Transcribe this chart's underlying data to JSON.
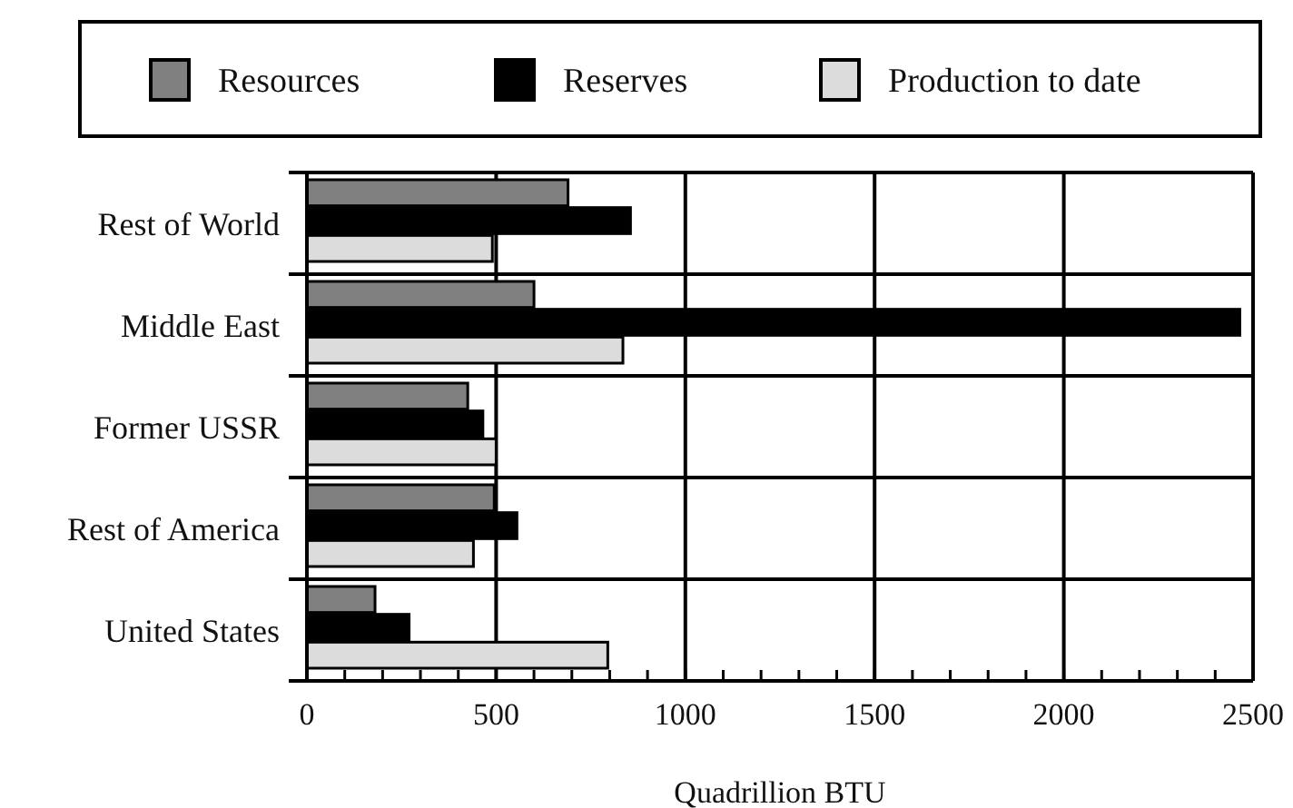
{
  "chart_data": {
    "type": "bar",
    "orientation": "horizontal",
    "xlabel": "Quadrillion BTU",
    "categories": [
      "Rest of World",
      "Middle East",
      "Former USSR",
      "Rest of America",
      "United States"
    ],
    "series": [
      {
        "name": "Resources",
        "color": "#808080",
        "values": [
          690,
          600,
          425,
          495,
          180
        ]
      },
      {
        "name": "Reserves",
        "color": "#000000",
        "values": [
          855,
          2465,
          465,
          555,
          270
        ]
      },
      {
        "name": "Production to date",
        "color": "#dcdcdc",
        "values": [
          490,
          835,
          500,
          440,
          795
        ]
      }
    ],
    "xlim": [
      0,
      2500
    ],
    "xticks": [
      0,
      {
        "value": 100,
        "label": null
      },
      {
        "value": 200,
        "label": null
      },
      {
        "value": 300,
        "label": null
      },
      {
        "value": 400,
        "label": null
      },
      500,
      {
        "value": 600,
        "label": null
      },
      {
        "value": 700,
        "label": null
      },
      {
        "value": 800,
        "label": null
      },
      {
        "value": 900,
        "label": null
      },
      1000,
      {
        "value": 1100,
        "label": null
      },
      {
        "value": 1200,
        "label": null
      },
      {
        "value": 1300,
        "label": null
      },
      {
        "value": 1400,
        "label": null
      },
      1500,
      {
        "value": 1600,
        "label": null
      },
      {
        "value": 1700,
        "label": null
      },
      {
        "value": 1800,
        "label": null
      },
      {
        "value": 1900,
        "label": null
      },
      2000,
      {
        "value": 2100,
        "label": null
      },
      {
        "value": 2200,
        "label": null
      },
      {
        "value": 2300,
        "label": null
      },
      {
        "value": 2400,
        "label": null
      },
      2500
    ],
    "grid": "x",
    "legend": "top"
  }
}
